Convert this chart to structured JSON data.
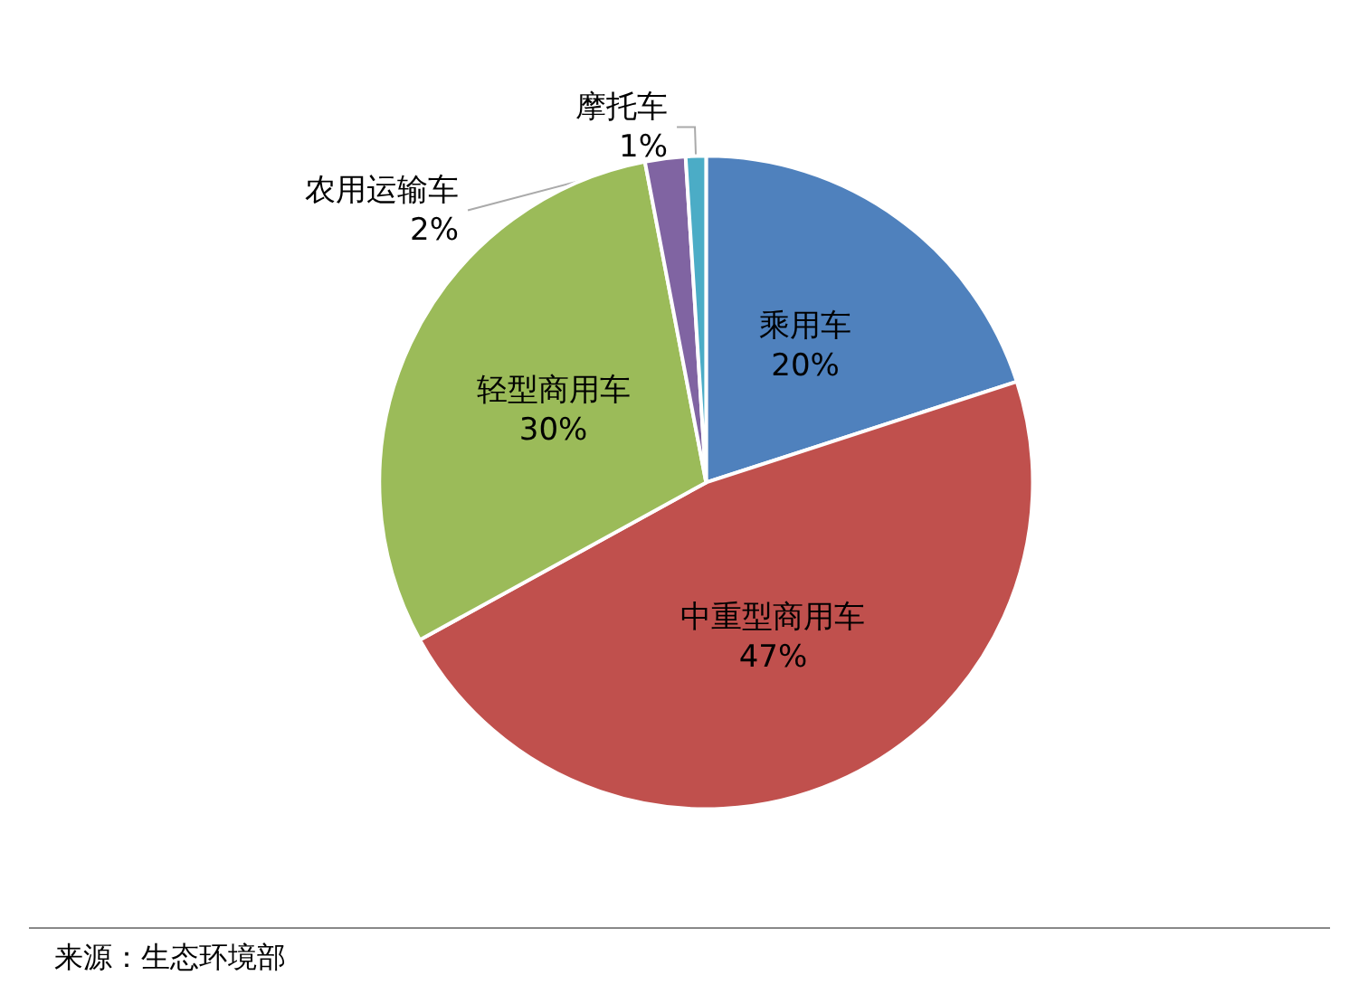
{
  "chart_data": {
    "type": "pie",
    "categories": [
      "乘用车",
      "中重型商用车",
      "轻型商用车",
      "农用运输车",
      "摩托车"
    ],
    "values": [
      20,
      47,
      30,
      2,
      1
    ],
    "value_labels": [
      "20%",
      "47%",
      "30%",
      "2%",
      "1%"
    ],
    "colors": [
      "#4f81bd",
      "#c0504d",
      "#9bbb59",
      "#8064a2",
      "#4bacc6"
    ],
    "legend": false,
    "annotations": [
      "来源：生态环境部"
    ]
  }
}
